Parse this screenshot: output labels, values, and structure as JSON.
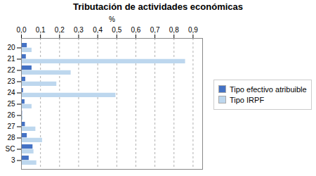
{
  "chart_data": {
    "type": "bar",
    "orientation": "horizontal",
    "title": "Tributación de actividades económicas",
    "xlabel": "%",
    "categories": [
      "20",
      "21",
      "22",
      "23",
      "24",
      "25",
      "26",
      "27",
      "28",
      "SC",
      "3"
    ],
    "series": [
      {
        "name": "Tipo efectivo atribuible",
        "color": "#4472c4",
        "values": [
          0.03,
          0.025,
          0.055,
          0.022,
          0.01,
          0.018,
          0.005,
          0.02,
          0.03,
          0.06,
          0.04
        ]
      },
      {
        "name": "Tipo IRPF",
        "color": "#bdd7ee",
        "values": [
          0.055,
          0.86,
          0.26,
          0.185,
          0.495,
          0.055,
          0.008,
          0.075,
          0.11,
          0.065,
          0.08
        ]
      }
    ],
    "xlim": [
      0,
      0.95
    ],
    "xticks": [
      {
        "value": 0.0,
        "label": "0,0"
      },
      {
        "value": 0.1,
        "label": "0,1"
      },
      {
        "value": 0.2,
        "label": "0,2"
      },
      {
        "value": 0.3,
        "label": "0,3"
      },
      {
        "value": 0.4,
        "label": "0,4"
      },
      {
        "value": 0.5,
        "label": "0,5"
      },
      {
        "value": 0.6,
        "label": "0,6"
      },
      {
        "value": 0.7,
        "label": "0,7"
      },
      {
        "value": 0.8,
        "label": "0,8"
      },
      {
        "value": 0.9,
        "label": "0,9"
      }
    ],
    "grid": true,
    "legend": "right"
  }
}
